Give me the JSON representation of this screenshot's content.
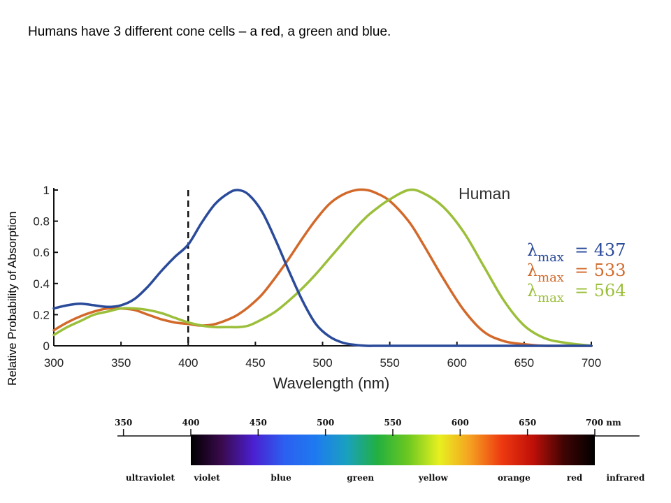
{
  "heading": "Humans have 3 different cone cells – a red, a green and blue.",
  "chart_data": {
    "type": "line",
    "xlabel": "Wavelength (nm)",
    "ylabel": "Relative Probability of Absorption",
    "legend_title": "Human",
    "xlim": [
      300,
      700
    ],
    "ylim": [
      0,
      1
    ],
    "x_ticks": [
      300,
      350,
      400,
      450,
      500,
      550,
      600,
      650,
      700
    ],
    "y_ticks": [
      0,
      0.2,
      0.4,
      0.6,
      0.8,
      1
    ],
    "y_tick_labels": [
      "0",
      "0.2",
      "0.4",
      "0.6",
      "0.8",
      "1"
    ],
    "reference_line_x": 400,
    "x": [
      300,
      310,
      320,
      330,
      340,
      350,
      360,
      370,
      380,
      390,
      400,
      410,
      420,
      430,
      437,
      445,
      455,
      465,
      475,
      485,
      495,
      505,
      515,
      525,
      533,
      540,
      550,
      564,
      575,
      590,
      605,
      620,
      635,
      650,
      665,
      680,
      700
    ],
    "series": [
      {
        "lambda_prefix": "λ",
        "lambda_sub": "max",
        "lambda_value": "= 437",
        "color": "#2a4a9a",
        "values": [
          0.24,
          0.26,
          0.27,
          0.26,
          0.25,
          0.26,
          0.3,
          0.38,
          0.48,
          0.57,
          0.65,
          0.79,
          0.91,
          0.98,
          1.0,
          0.97,
          0.86,
          0.68,
          0.48,
          0.29,
          0.14,
          0.06,
          0.02,
          0.005,
          0,
          0,
          0,
          0,
          0,
          0,
          0,
          0,
          0,
          0,
          0,
          0,
          0
        ]
      },
      {
        "lambda_prefix": "λ",
        "lambda_sub": "max",
        "lambda_value": "= 533",
        "color": "#d2692a",
        "values": [
          0.1,
          0.15,
          0.19,
          0.22,
          0.24,
          0.24,
          0.23,
          0.2,
          0.17,
          0.15,
          0.14,
          0.13,
          0.14,
          0.17,
          0.2,
          0.25,
          0.33,
          0.44,
          0.56,
          0.69,
          0.81,
          0.91,
          0.97,
          1.0,
          1.0,
          0.98,
          0.93,
          0.8,
          0.65,
          0.43,
          0.23,
          0.09,
          0.03,
          0.01,
          0,
          0,
          0
        ]
      },
      {
        "lambda_prefix": "λ",
        "lambda_sub": "max",
        "lambda_value": "= 564",
        "color": "#9bbf3a",
        "values": [
          0.07,
          0.12,
          0.16,
          0.2,
          0.22,
          0.24,
          0.24,
          0.23,
          0.21,
          0.18,
          0.15,
          0.13,
          0.12,
          0.12,
          0.12,
          0.13,
          0.17,
          0.22,
          0.29,
          0.37,
          0.46,
          0.56,
          0.66,
          0.76,
          0.83,
          0.88,
          0.94,
          1.0,
          0.98,
          0.89,
          0.73,
          0.51,
          0.29,
          0.13,
          0.05,
          0.02,
          0
        ]
      }
    ]
  },
  "spectrum": {
    "tick_values": [
      350,
      400,
      450,
      500,
      550,
      600,
      650,
      700
    ],
    "tick_labels": [
      "350",
      "400",
      "450",
      "500",
      "550",
      "600",
      "650",
      "700 nm"
    ],
    "band_labels": [
      "ultraviolet",
      "violet",
      "blue",
      "green",
      "yellow",
      "orange",
      "red",
      "infrared"
    ],
    "band_centers": [
      350,
      412,
      467,
      526,
      580,
      640,
      685,
      740
    ],
    "gradient_colors": [
      "#000000",
      "#3a0a4e",
      "#4a1fd0",
      "#2c5ff0",
      "#1e7af0",
      "#1aa0c0",
      "#22b040",
      "#6cc820",
      "#e8f020",
      "#f5a020",
      "#ee3a10",
      "#c01008",
      "#400404",
      "#000000"
    ]
  }
}
